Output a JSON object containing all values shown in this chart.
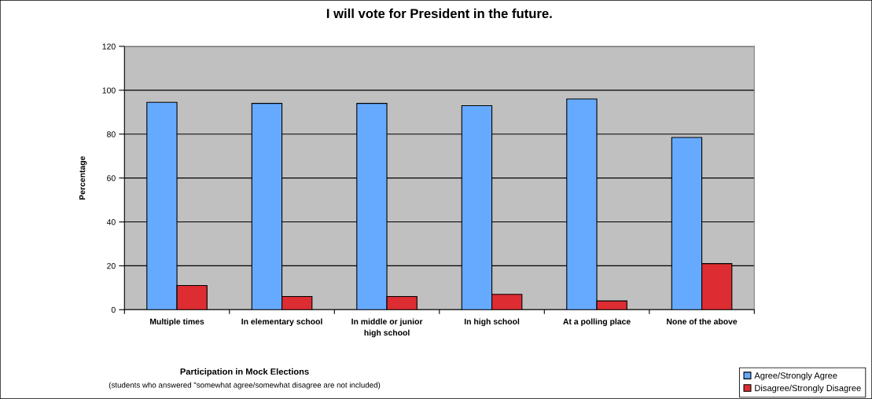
{
  "chart_data": {
    "type": "bar",
    "title": "I will vote for President in the future.",
    "xlabel": "Participation in Mock Elections",
    "ylabel": "Percentage",
    "annotations": [
      "(students who answered \"somewhat agree/somewhat disagree are not included)"
    ],
    "categories": [
      "Multiple times",
      "In elementary school",
      "In middle or junior high school",
      "In high school",
      "At a polling place",
      "None of the above"
    ],
    "series": [
      {
        "name": "Agree/Strongly Agree",
        "color": "#66aaff",
        "values": [
          94.5,
          94,
          94,
          93,
          96,
          78.5
        ]
      },
      {
        "name": "Disagree/Strongly Disagree",
        "color": "#dd2d32",
        "values": [
          11,
          6,
          6,
          7,
          4,
          21
        ]
      }
    ],
    "ylim": [
      0,
      120
    ],
    "yticks": [
      0,
      20,
      40,
      60,
      80,
      100,
      120
    ],
    "grid": "y",
    "legend": "bottom right"
  }
}
